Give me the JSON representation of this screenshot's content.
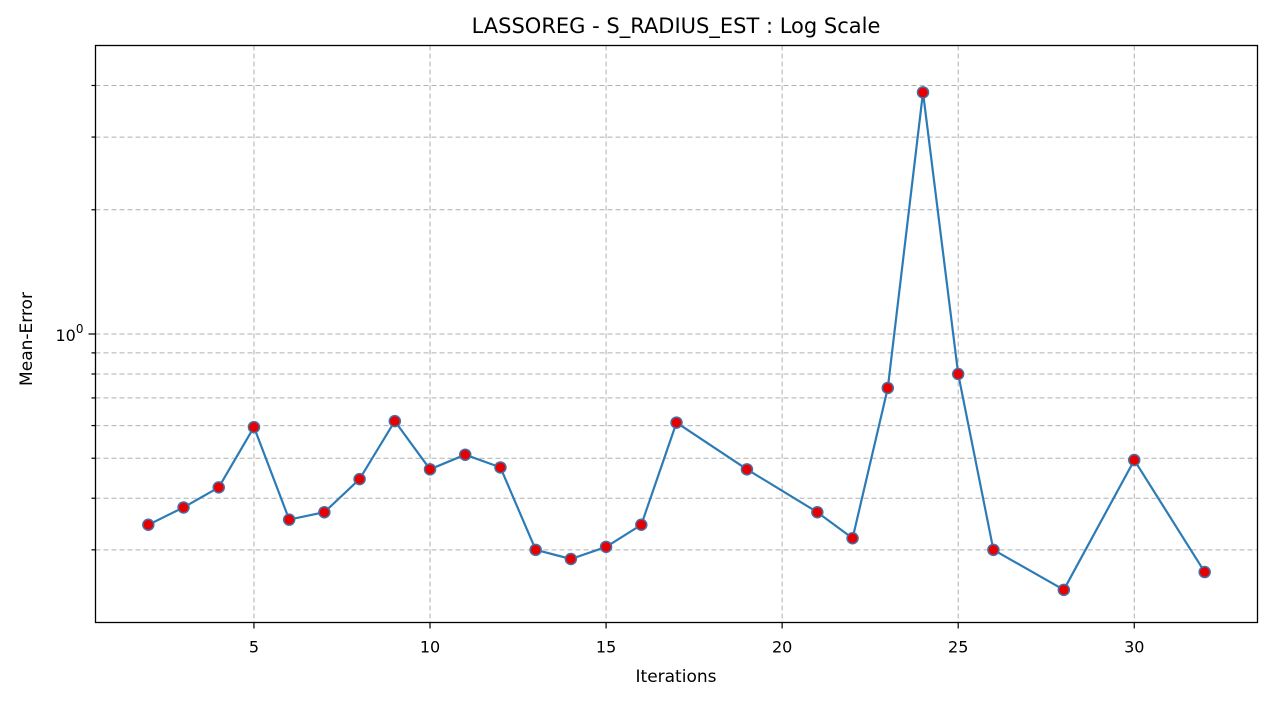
{
  "chart_data": {
    "type": "line",
    "title": "LASSOREG - S_RADIUS_EST : Log Scale",
    "xlabel": "Iterations",
    "ylabel": "Mean-Error",
    "yscale": "log",
    "xlim": [
      0.5,
      33.5
    ],
    "ylim": [
      0.2,
      5.0
    ],
    "xticks": [
      5,
      10,
      15,
      20,
      25,
      30
    ],
    "yticks_major": [
      1
    ],
    "ytick_major_label": "10",
    "ytick_major_exponent": "0",
    "yticks_minor": [
      0.3,
      0.4,
      0.5,
      0.6,
      0.7,
      0.8,
      0.9,
      2,
      3,
      4
    ],
    "grid": true,
    "line_color": "#2c7bb6",
    "marker_face": "#e60000",
    "marker_edge": "#4a6fa5",
    "series": [
      {
        "x": [
          2,
          3,
          4,
          5,
          6,
          7,
          8,
          9,
          10,
          11,
          12,
          13,
          14,
          15,
          16,
          17,
          19,
          21,
          22,
          23,
          24,
          25,
          26,
          28,
          30,
          32
        ],
        "values": [
          0.345,
          0.38,
          0.425,
          0.595,
          0.355,
          0.37,
          0.445,
          0.615,
          0.47,
          0.51,
          0.475,
          0.3,
          0.285,
          0.305,
          0.345,
          0.61,
          0.47,
          0.37,
          0.32,
          0.74,
          3.85,
          0.8,
          0.3,
          0.24,
          0.495,
          0.265
        ]
      }
    ]
  }
}
